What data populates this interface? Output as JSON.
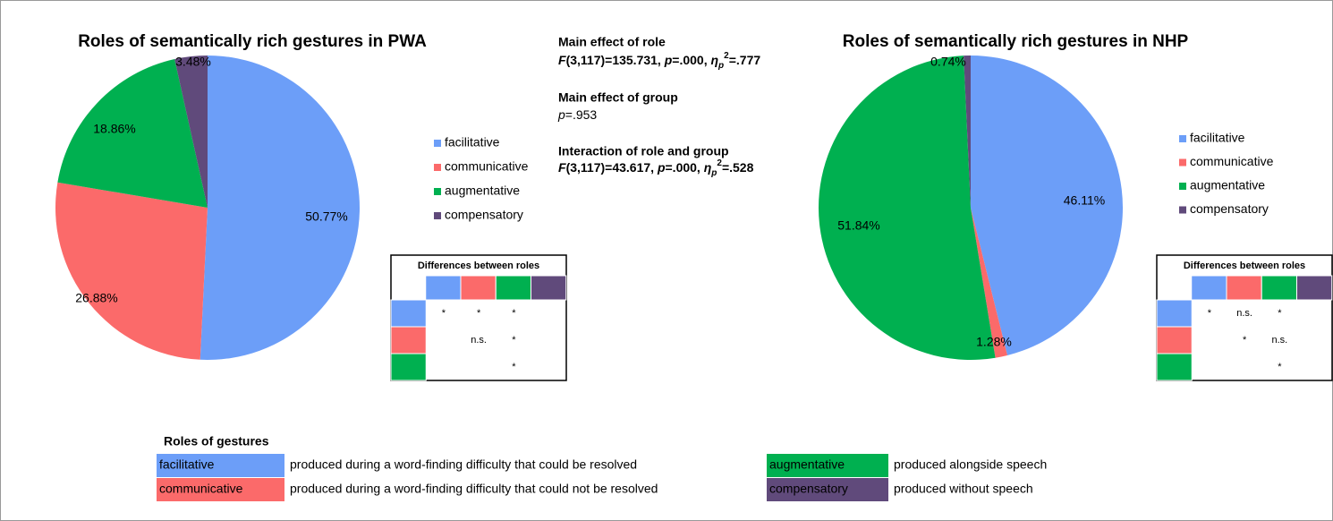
{
  "chart_data": [
    {
      "type": "pie",
      "title": "Roles of semantically rich gestures in PWA",
      "categories": [
        "facilitative",
        "communicative",
        "augmentative",
        "compensatory"
      ],
      "values": [
        50.77,
        26.88,
        18.86,
        3.48
      ],
      "value_labels": [
        "50.77%",
        "26.88%",
        "18.86%",
        "3.48%"
      ],
      "colors": [
        "#6c9ef8",
        "#fb6a6a",
        "#00b050",
        "#604a7b"
      ]
    },
    {
      "type": "pie",
      "title": "Roles of semantically rich gestures in NHP",
      "categories": [
        "facilitative",
        "communicative",
        "augmentative",
        "compensatory"
      ],
      "values": [
        46.11,
        1.28,
        51.84,
        0.74
      ],
      "value_labels": [
        "46.11%",
        "1.28%",
        "51.84%",
        "0.74%"
      ],
      "colors": [
        "#6c9ef8",
        "#fb6a6a",
        "#00b050",
        "#604a7b"
      ]
    }
  ],
  "stats": [
    {
      "heading": "Main effect of role",
      "parts": [
        "F",
        "(3,117)=135.731,  ",
        "p",
        "=.000, ",
        "η",
        "p",
        "2",
        "=.777"
      ]
    },
    {
      "heading": "Main effect of group",
      "parts": [
        "p",
        "=.953"
      ]
    },
    {
      "heading": "Interaction of role and group",
      "parts": [
        "F",
        "(3,117)=43.617,  ",
        "p",
        "=.000, ",
        "η",
        "p",
        "2",
        "=.528"
      ]
    }
  ],
  "diff_tables": [
    {
      "title": "Differences  between roles",
      "rows": [
        [
          "*",
          "*",
          "*"
        ],
        [
          "n.s.",
          "*"
        ],
        [
          "*"
        ]
      ]
    },
    {
      "title": "Differences  between roles",
      "rows": [
        [
          "*",
          "n.s.",
          "*"
        ],
        [
          "*",
          "n.s."
        ],
        [
          "*"
        ]
      ]
    }
  ],
  "key": {
    "title": "Roles of gestures",
    "items": [
      {
        "name": "facilitative",
        "description": "produced during a word-finding difficulty that could be resolved"
      },
      {
        "name": "communicative",
        "description": "produced during a word-finding difficulty that could not be resolved"
      },
      {
        "name": "augmentative",
        "description": "produced alongside speech"
      },
      {
        "name": "compensatory",
        "description": "produced without speech"
      }
    ]
  }
}
